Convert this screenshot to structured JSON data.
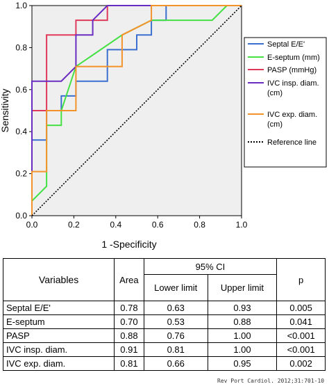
{
  "chart_data": {
    "type": "line",
    "xlabel": "1 -Specificity",
    "ylabel": "Sensitivity",
    "xlim": [
      0,
      1
    ],
    "ylim": [
      0,
      1
    ],
    "x_ticks": [
      "0.0",
      "0.2",
      "0.4",
      "0.6",
      "0.8",
      "1.0"
    ],
    "y_ticks": [
      "0.0",
      "0.2",
      "0.4",
      "0.6",
      "0.8",
      "1.0"
    ],
    "grid": false,
    "legend_position": "right",
    "series": [
      {
        "name": "Septal E/E'",
        "color": "#3a6fd0",
        "points": [
          [
            0,
            0
          ],
          [
            0,
            0.36
          ],
          [
            0.07,
            0.36
          ],
          [
            0.07,
            0.5
          ],
          [
            0.14,
            0.5
          ],
          [
            0.14,
            0.57
          ],
          [
            0.21,
            0.57
          ],
          [
            0.21,
            0.64
          ],
          [
            0.36,
            0.64
          ],
          [
            0.36,
            0.79
          ],
          [
            0.5,
            0.79
          ],
          [
            0.5,
            0.86
          ],
          [
            0.57,
            0.86
          ],
          [
            0.57,
            0.93
          ],
          [
            0.64,
            0.93
          ],
          [
            0.64,
            1.0
          ],
          [
            1,
            1
          ]
        ]
      },
      {
        "name": "E-septum (mm)",
        "color": "#44e044",
        "points": [
          [
            0,
            0
          ],
          [
            0,
            0.07
          ],
          [
            0.07,
            0.14
          ],
          [
            0.07,
            0.43
          ],
          [
            0.14,
            0.43
          ],
          [
            0.14,
            0.5
          ],
          [
            0.21,
            0.71
          ],
          [
            0.43,
            0.86
          ],
          [
            0.57,
            0.93
          ],
          [
            0.86,
            0.93
          ],
          [
            0.93,
            1.0
          ],
          [
            1,
            1
          ]
        ]
      },
      {
        "name": "PASP (mmHg)",
        "color": "#e03a5a",
        "points": [
          [
            0,
            0
          ],
          [
            0,
            0.5
          ],
          [
            0.07,
            0.5
          ],
          [
            0.07,
            0.86
          ],
          [
            0.21,
            0.86
          ],
          [
            0.21,
            0.93
          ],
          [
            0.36,
            0.93
          ],
          [
            0.36,
            1.0
          ],
          [
            1,
            1
          ]
        ]
      },
      {
        "name": "IVC insp. diam. (cm)",
        "color": "#6a2cc0",
        "points": [
          [
            0,
            0
          ],
          [
            0,
            0.64
          ],
          [
            0.14,
            0.64
          ],
          [
            0.21,
            0.71
          ],
          [
            0.21,
            0.86
          ],
          [
            0.29,
            0.86
          ],
          [
            0.29,
            0.93
          ],
          [
            0.36,
            1.0
          ],
          [
            1,
            1
          ]
        ]
      },
      {
        "name": "IVC exp. diam. (cm)",
        "color": "#f4922a",
        "points": [
          [
            0,
            0
          ],
          [
            0,
            0.21
          ],
          [
            0.07,
            0.21
          ],
          [
            0.07,
            0.5
          ],
          [
            0.21,
            0.5
          ],
          [
            0.21,
            0.71
          ],
          [
            0.43,
            0.71
          ],
          [
            0.43,
            0.86
          ],
          [
            0.57,
            0.93
          ],
          [
            0.57,
            1.0
          ],
          [
            1,
            1
          ]
        ]
      },
      {
        "name": "Reference line",
        "color": "#000000",
        "dashed": true,
        "points": [
          [
            0,
            0
          ],
          [
            1,
            1
          ]
        ]
      }
    ]
  },
  "table": {
    "headers": {
      "variables": "Variables",
      "area": "Area",
      "ci": "95% CI",
      "lower": "Lower limit",
      "upper": "Upper limit",
      "p": "p"
    },
    "rows": [
      {
        "variable": "Septal E/E'",
        "area": "0.78",
        "lower": "0.63",
        "upper": "0.93",
        "p": "0.005"
      },
      {
        "variable": "E-septum",
        "area": "0.70",
        "lower": "0.53",
        "upper": "0.88",
        "p": "0.041"
      },
      {
        "variable": "PASP",
        "area": "0.88",
        "lower": "0.76",
        "upper": "1.00",
        "p": "<0.001"
      },
      {
        "variable": "IVC insp. diam.",
        "area": "0.91",
        "lower": "0.81",
        "upper": "1.00",
        "p": "<0.001"
      },
      {
        "variable": "IVC exp. diam.",
        "area": "0.81",
        "lower": "0.66",
        "upper": "0.95",
        "p": "0.002"
      }
    ]
  },
  "footer": "Rev Port Cardiol. 2012;31:701-10"
}
